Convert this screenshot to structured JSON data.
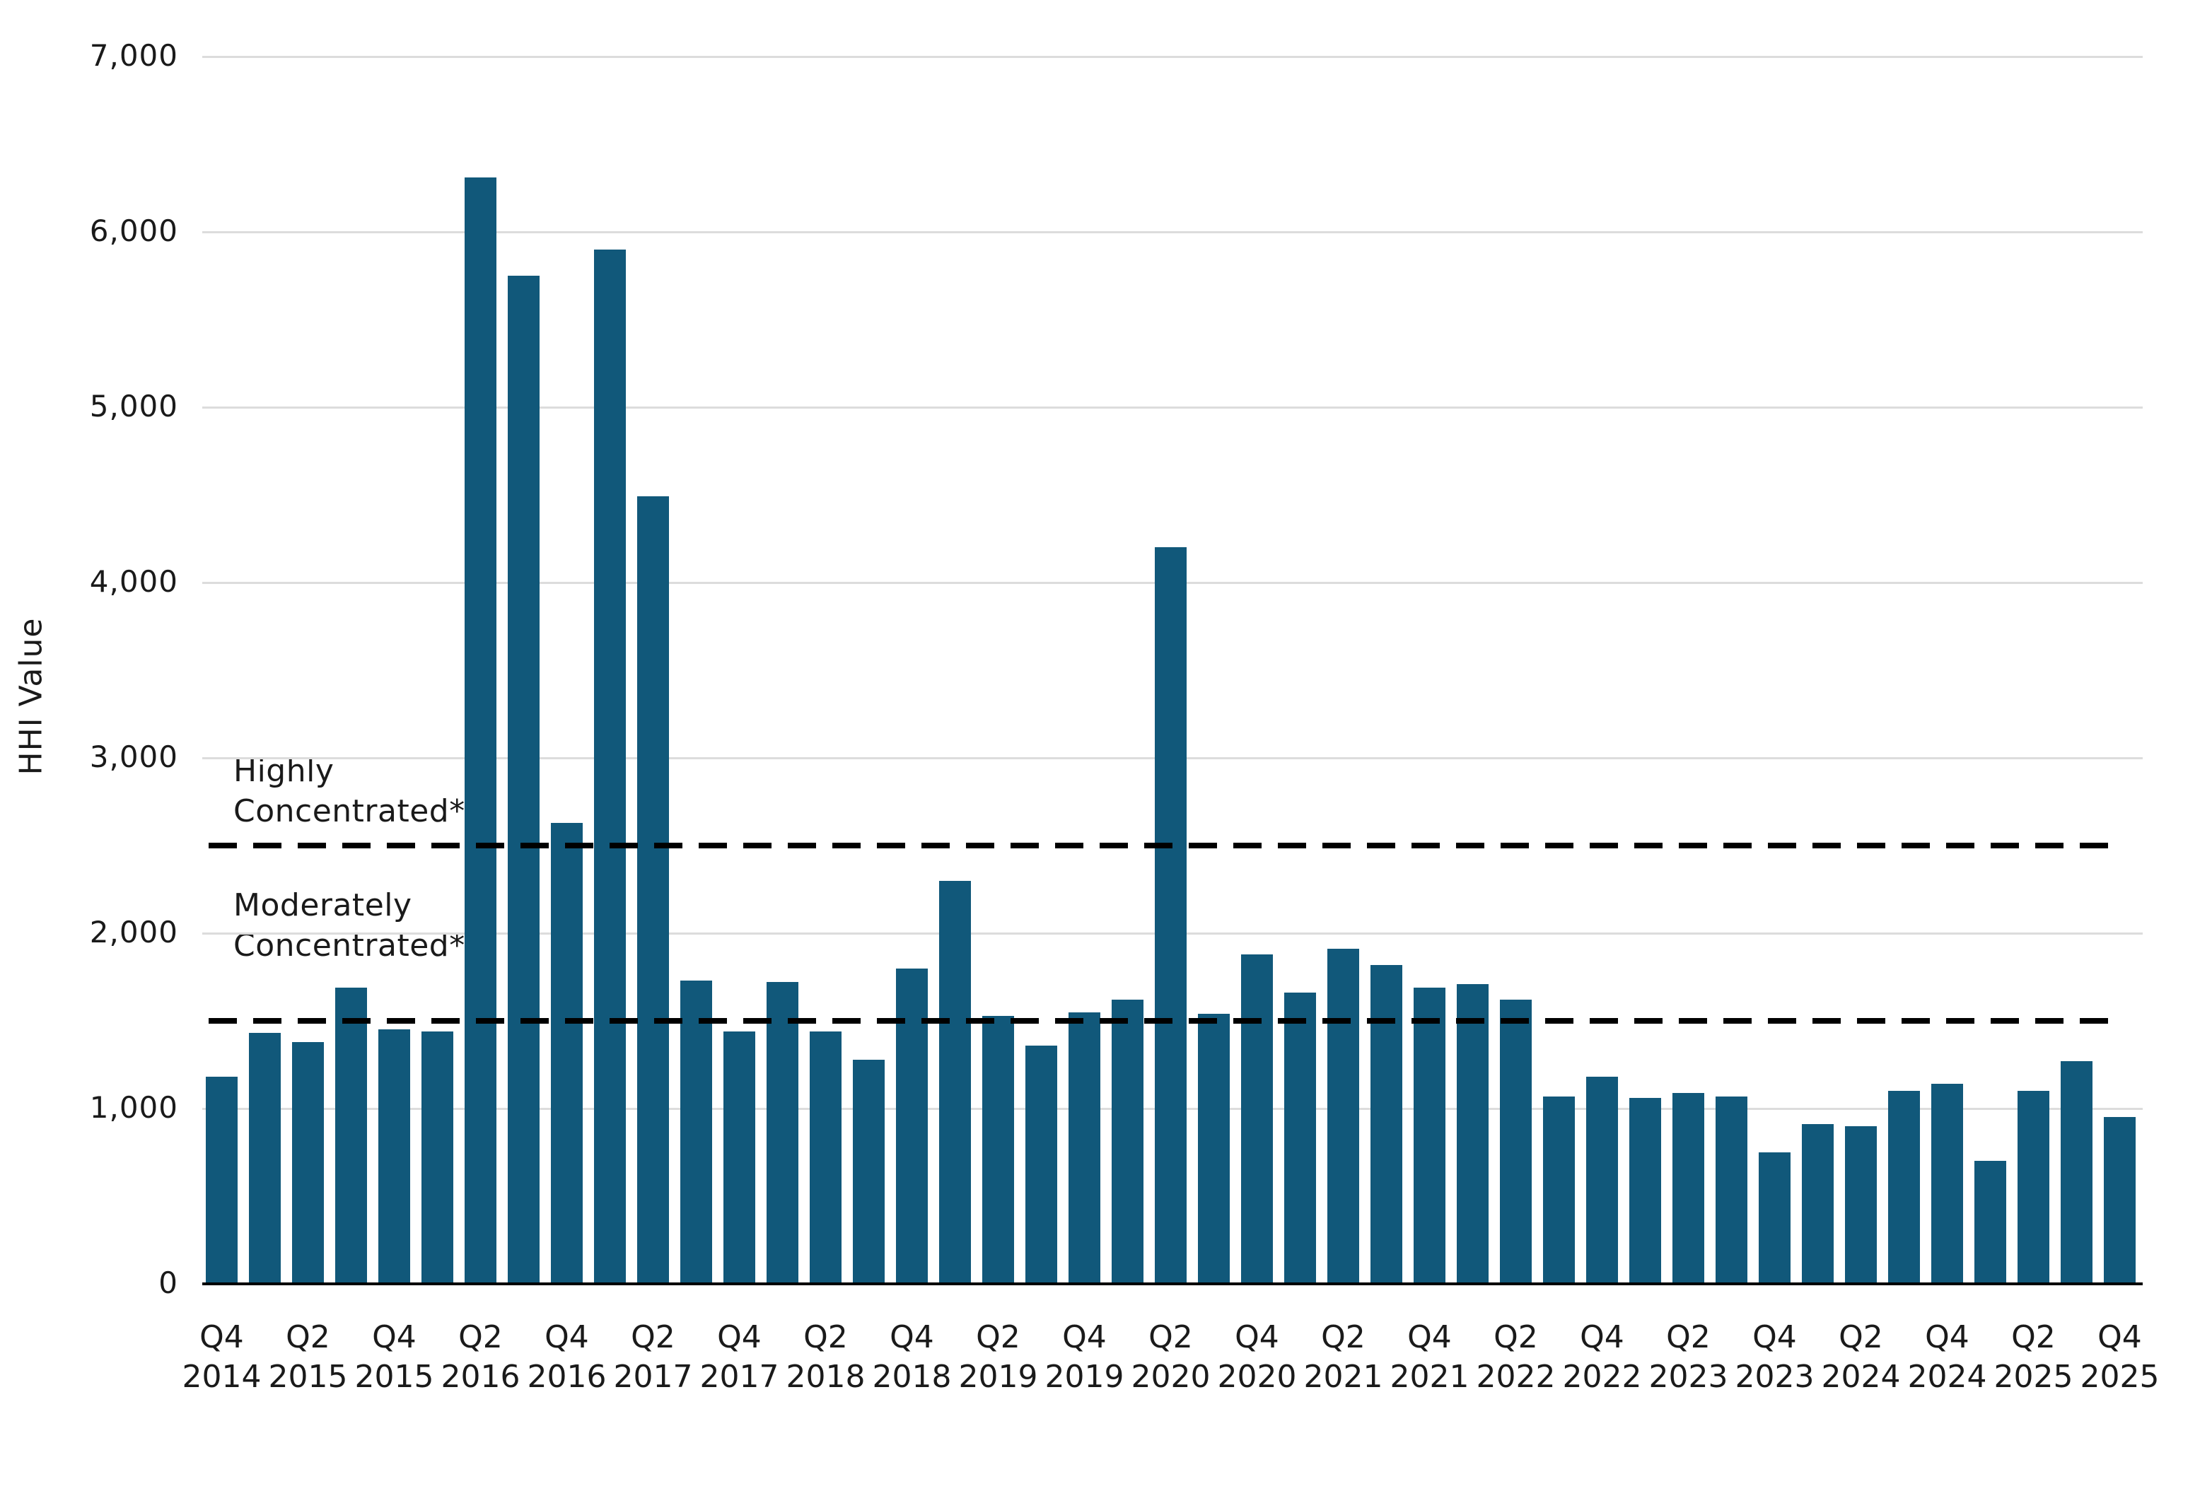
{
  "chart": {
    "background_color": "#FFFFFF",
    "bar_color": "#11587A",
    "gridline_color": "#DCDCDC",
    "axis_color": "#000000",
    "text_color": "#1A1A1A",
    "reference_line_color": "#000000"
  },
  "chart_data": {
    "type": "bar",
    "title": "",
    "xlabel": "",
    "ylabel": "HHI Value",
    "ylim": [
      0,
      7000
    ],
    "ytick_step": 1000,
    "ytick_labels": [
      "0",
      "1,000",
      "2,000",
      "3,000",
      "4,000",
      "5,000",
      "6,000",
      "7,000"
    ],
    "grid": "horizontal",
    "legend": "none",
    "x_tick_every": 2,
    "categories": [
      "Q4 2014",
      "Q1 2015",
      "Q2 2015",
      "Q3 2015",
      "Q4 2015",
      "Q1 2016",
      "Q2 2016",
      "Q3 2016",
      "Q4 2016",
      "Q1 2017",
      "Q2 2017",
      "Q3 2017",
      "Q4 2017",
      "Q1 2018",
      "Q2 2018",
      "Q3 2018",
      "Q4 2018",
      "Q1 2019",
      "Q2 2019",
      "Q3 2019",
      "Q4 2019",
      "Q1 2020",
      "Q2 2020",
      "Q3 2020",
      "Q4 2020",
      "Q1 2021",
      "Q2 2021",
      "Q3 2021",
      "Q4 2021",
      "Q1 2022",
      "Q2 2022",
      "Q3 2022",
      "Q4 2022",
      "Q1 2023",
      "Q2 2023",
      "Q3 2023",
      "Q4 2023",
      "Q1 2024",
      "Q2 2024",
      "Q3 2024",
      "Q4 2024",
      "Q1 2025",
      "Q2 2025",
      "Q3 2025",
      "Q4 2025"
    ],
    "values": [
      1180,
      1430,
      1380,
      1690,
      1450,
      1440,
      6310,
      5750,
      2630,
      5900,
      4490,
      1730,
      1440,
      1720,
      1440,
      1280,
      1800,
      2300,
      1530,
      1360,
      1550,
      1620,
      4200,
      1540,
      1880,
      1660,
      1910,
      1820,
      1690,
      1710,
      1620,
      1070,
      1180,
      1060,
      1090,
      1070,
      750,
      910,
      900,
      1100,
      1140,
      700,
      1100,
      1270,
      950
    ],
    "x_tick_labels": [
      "Q4 2014",
      "Q2 2015",
      "Q4 2015",
      "Q2 2016",
      "Q4 2016",
      "Q2 2017",
      "Q4 2017",
      "Q2 2018",
      "Q4 2018",
      "Q2 2019",
      "Q4 2019",
      "Q2 2020",
      "Q4 2020",
      "Q2 2021",
      "Q4 2021",
      "Q2 2022",
      "Q4 2022",
      "Q2 2023",
      "Q4 2023",
      "Q2 2024",
      "Q4 2024",
      "Q2 2025",
      "Q4 2025"
    ],
    "reference_lines": [
      {
        "value": 2500,
        "label": "Highly\nConcentrated*",
        "style": "dashed"
      },
      {
        "value": 1500,
        "label": "Moderately\nConcentrated*",
        "style": "dashed"
      }
    ]
  }
}
